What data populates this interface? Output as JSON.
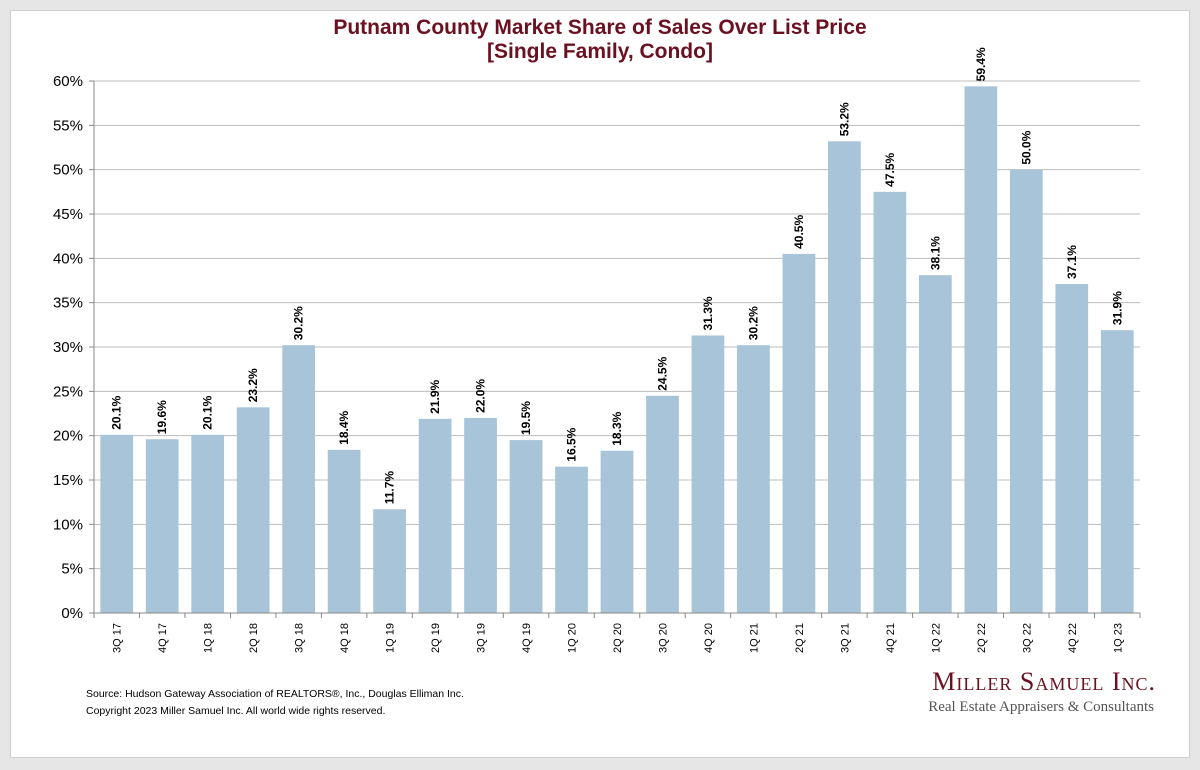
{
  "chart_data": {
    "type": "bar",
    "title": "Putnam County Market Share of Sales Over List Price",
    "subtitle": "[Single Family, Condo]",
    "categories": [
      "3Q 17",
      "4Q 17",
      "1Q 18",
      "2Q 18",
      "3Q 18",
      "4Q 18",
      "1Q 19",
      "2Q 19",
      "3Q 19",
      "4Q 19",
      "1Q 20",
      "2Q 20",
      "3Q 20",
      "4Q 20",
      "1Q 21",
      "2Q 21",
      "3Q 21",
      "4Q 21",
      "1Q 22",
      "2Q 22",
      "3Q 22",
      "4Q 22",
      "1Q 23"
    ],
    "values": [
      20.1,
      19.6,
      20.1,
      23.2,
      30.2,
      18.4,
      11.7,
      21.9,
      22.0,
      19.5,
      16.5,
      18.3,
      24.5,
      31.3,
      30.2,
      40.5,
      53.2,
      47.5,
      38.1,
      59.4,
      50.0,
      37.1,
      31.9
    ],
    "data_labels": [
      "20.1%",
      "19.6%",
      "20.1%",
      "23.2%",
      "30.2%",
      "18.4%",
      "11.7%",
      "21.9%",
      "22.0%",
      "19.5%",
      "16.5%",
      "18.3%",
      "24.5%",
      "31.3%",
      "30.2%",
      "40.5%",
      "53.2%",
      "47.5%",
      "38.1%",
      "59.4%",
      "50.0%",
      "37.1%",
      "31.9%"
    ],
    "y_tick_labels": [
      "0%",
      "5%",
      "10%",
      "15%",
      "20%",
      "25%",
      "30%",
      "35%",
      "40%",
      "45%",
      "50%",
      "55%",
      "60%"
    ],
    "xlabel": "",
    "ylabel": "",
    "ylim": [
      0,
      60
    ],
    "grid": true,
    "bar_color": "#a8c4d8",
    "title_color": "#6b1020"
  },
  "footer": {
    "source": "Source: Hudson Gateway Association of REALTORS®, Inc., Douglas Elliman Inc.",
    "copyright": "Copyright 2023 Miller Samuel Inc.  All world wide rights reserved."
  },
  "logo": {
    "name": "Miller Samuel Inc.",
    "tagline": "Real Estate Appraisers & Consultants"
  }
}
